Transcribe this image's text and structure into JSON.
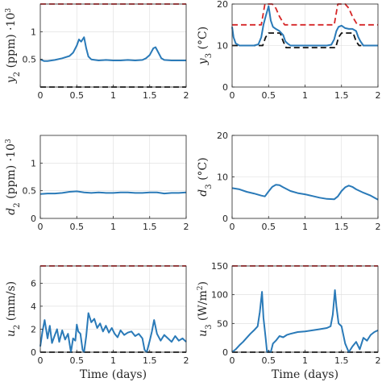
{
  "colors": {
    "series": "#2a7ab8",
    "upper_bound": "#d62728",
    "lower_bound": "#111111",
    "grid": "#dcdcdc"
  },
  "xlabel_text": "Time (days)",
  "chart_data": [
    {
      "id": "y2",
      "type": "line",
      "ylabel": "y2 (ppm) ·10³",
      "ylabel_parts": {
        "sym": "y",
        "sub": "2",
        "rest": " (ppm) ·10",
        "sup": "3"
      },
      "xlim": [
        0,
        2
      ],
      "ylim": [
        0,
        1.5
      ],
      "xticks": [
        0,
        0.5,
        1,
        1.5,
        2
      ],
      "xtick_labels": [
        "0",
        "0.5",
        "1",
        "1.5",
        "2"
      ],
      "yticks": [
        0.5,
        1
      ],
      "ytick_labels": [
        "0.5",
        "1"
      ],
      "xlabel": "",
      "grid": true,
      "series": [
        {
          "role": "measured",
          "style": "solid",
          "x": [
            0,
            0.05,
            0.1,
            0.2,
            0.3,
            0.4,
            0.45,
            0.5,
            0.53,
            0.56,
            0.6,
            0.63,
            0.66,
            0.7,
            0.8,
            0.9,
            1.0,
            1.1,
            1.2,
            1.3,
            1.4,
            1.45,
            1.5,
            1.55,
            1.58,
            1.62,
            1.66,
            1.7,
            1.8,
            1.9,
            2.0
          ],
          "y": [
            0.5,
            0.47,
            0.47,
            0.49,
            0.52,
            0.56,
            0.62,
            0.75,
            0.86,
            0.82,
            0.9,
            0.7,
            0.55,
            0.5,
            0.48,
            0.49,
            0.48,
            0.48,
            0.49,
            0.48,
            0.49,
            0.52,
            0.58,
            0.7,
            0.72,
            0.62,
            0.52,
            0.49,
            0.48,
            0.48,
            0.48
          ]
        },
        {
          "role": "upper",
          "style": "dashed",
          "x": [
            0,
            2
          ],
          "y": [
            1.5,
            1.5
          ]
        },
        {
          "role": "lower",
          "style": "dashed",
          "x": [
            0,
            2
          ],
          "y": [
            0.0,
            0.0
          ]
        }
      ]
    },
    {
      "id": "y3",
      "type": "line",
      "ylabel": "y3 (°C)",
      "ylabel_parts": {
        "sym": "y",
        "sub": "3",
        "rest": " (°C)",
        "sup": ""
      },
      "xlim": [
        0,
        2
      ],
      "ylim": [
        0,
        20
      ],
      "xticks": [
        0,
        0.5,
        1,
        1.5,
        2
      ],
      "xtick_labels": [
        "0",
        "0.5",
        "1",
        "1.5",
        "2"
      ],
      "yticks": [
        0,
        10,
        20
      ],
      "ytick_labels": [
        "0",
        "10",
        "20"
      ],
      "xlabel": "",
      "grid": true,
      "series": [
        {
          "role": "measured",
          "style": "solid",
          "x": [
            0,
            0.02,
            0.05,
            0.1,
            0.2,
            0.3,
            0.36,
            0.4,
            0.43,
            0.46,
            0.5,
            0.53,
            0.56,
            0.6,
            0.65,
            0.7,
            0.73,
            0.76,
            0.8,
            0.9,
            1.0,
            1.1,
            1.2,
            1.3,
            1.36,
            1.4,
            1.43,
            1.46,
            1.5,
            1.55,
            1.6,
            1.65,
            1.7,
            1.73,
            1.76,
            1.8,
            1.9,
            2.0
          ],
          "y": [
            14.5,
            12,
            10.5,
            10,
            10,
            10,
            10.3,
            12,
            15,
            17,
            19.5,
            16,
            14.5,
            14,
            13.5,
            12.5,
            11,
            10.5,
            10,
            10,
            10,
            10,
            10,
            10,
            10.2,
            11.5,
            13.5,
            14.5,
            14.8,
            14.2,
            14,
            14,
            13.5,
            12,
            11,
            10,
            10,
            10
          ]
        },
        {
          "role": "upper",
          "style": "dashed",
          "x": [
            0,
            0.4,
            0.42,
            0.45,
            0.5,
            0.55,
            0.6,
            0.65,
            0.7,
            0.72,
            0.75,
            1.4,
            1.42,
            1.45,
            1.5,
            1.55,
            1.6,
            1.65,
            1.7,
            1.72,
            1.75,
            2.0
          ],
          "y": [
            15,
            15,
            17,
            20,
            20,
            20,
            19,
            17,
            15.5,
            15,
            15,
            15,
            17,
            20,
            20,
            20,
            19,
            17,
            15.5,
            15,
            15,
            15
          ]
        },
        {
          "role": "lower",
          "style": "dashed",
          "x": [
            0,
            0.42,
            0.46,
            0.5,
            0.66,
            0.7,
            0.74,
            1.42,
            1.46,
            1.5,
            1.66,
            1.7,
            1.74,
            2.0
          ],
          "y": [
            10,
            10,
            12,
            13,
            13,
            11,
            9.5,
            9.5,
            12,
            13,
            13,
            11,
            10,
            10
          ]
        }
      ]
    },
    {
      "id": "d2",
      "type": "line",
      "ylabel": "d2 (ppm) ·10³",
      "ylabel_parts": {
        "sym": "d",
        "sub": "2",
        "rest": " (ppm) ·10",
        "sup": "3"
      },
      "xlim": [
        0,
        2
      ],
      "ylim": [
        0,
        1.5
      ],
      "xticks": [
        0,
        0.5,
        1,
        1.5,
        2
      ],
      "xtick_labels": [
        "0",
        "0.5",
        "1",
        "1.5",
        "2"
      ],
      "yticks": [
        0,
        0.5,
        1
      ],
      "ytick_labels": [
        "0",
        "0.5",
        "1"
      ],
      "xlabel": "",
      "grid": true,
      "series": [
        {
          "role": "measured",
          "style": "solid",
          "x": [
            0,
            0.1,
            0.2,
            0.3,
            0.4,
            0.5,
            0.6,
            0.7,
            0.8,
            0.9,
            1.0,
            1.1,
            1.2,
            1.3,
            1.4,
            1.5,
            1.6,
            1.7,
            1.8,
            1.9,
            2.0
          ],
          "y": [
            0.44,
            0.45,
            0.45,
            0.46,
            0.48,
            0.49,
            0.47,
            0.46,
            0.47,
            0.46,
            0.46,
            0.47,
            0.47,
            0.46,
            0.46,
            0.47,
            0.47,
            0.45,
            0.46,
            0.46,
            0.47
          ]
        }
      ]
    },
    {
      "id": "d3",
      "type": "line",
      "ylabel": "d3 (°C)",
      "ylabel_parts": {
        "sym": "d",
        "sub": "3",
        "rest": " (°C)",
        "sup": ""
      },
      "xlim": [
        0,
        2
      ],
      "ylim": [
        0,
        20
      ],
      "xticks": [
        0,
        0.5,
        1,
        1.5,
        2
      ],
      "xtick_labels": [
        "0",
        "0.5",
        "1",
        "1.5",
        "2"
      ],
      "yticks": [
        0,
        10,
        20
      ],
      "ytick_labels": [
        "0",
        "10",
        "20"
      ],
      "xlabel": "",
      "grid": true,
      "series": [
        {
          "role": "measured",
          "style": "solid",
          "x": [
            0,
            0.1,
            0.2,
            0.3,
            0.4,
            0.45,
            0.5,
            0.55,
            0.6,
            0.65,
            0.7,
            0.8,
            0.9,
            1.0,
            1.1,
            1.2,
            1.3,
            1.4,
            1.45,
            1.5,
            1.55,
            1.6,
            1.65,
            1.7,
            1.8,
            1.9,
            2.0
          ],
          "y": [
            7.3,
            7.0,
            6.4,
            6.0,
            5.5,
            5.3,
            6.5,
            7.6,
            8.1,
            8.0,
            7.5,
            6.6,
            6.1,
            5.8,
            5.4,
            5.0,
            4.7,
            4.6,
            5.3,
            6.6,
            7.5,
            7.9,
            7.6,
            7.0,
            6.2,
            5.5,
            4.5
          ]
        }
      ]
    },
    {
      "id": "u2",
      "type": "line",
      "ylabel": "u2 (mm/s)",
      "ylabel_parts": {
        "sym": "u",
        "sub": "2",
        "rest": " (mm/s)",
        "sup": ""
      },
      "xlim": [
        0,
        2
      ],
      "ylim": [
        0,
        7.5
      ],
      "xticks": [
        0,
        0.5,
        1,
        1.5,
        2
      ],
      "xtick_labels": [
        "0",
        "0.5",
        "1",
        "1.5",
        "2"
      ],
      "yticks": [
        0,
        2,
        4,
        6
      ],
      "ytick_labels": [
        "0",
        "2",
        "4",
        "6"
      ],
      "xlabel": "Time (days)",
      "grid": true,
      "series": [
        {
          "role": "measured",
          "style": "solid",
          "x": [
            0,
            0.03,
            0.06,
            0.1,
            0.13,
            0.16,
            0.2,
            0.23,
            0.26,
            0.3,
            0.34,
            0.38,
            0.42,
            0.45,
            0.48,
            0.5,
            0.52,
            0.55,
            0.58,
            0.6,
            0.63,
            0.66,
            0.7,
            0.74,
            0.78,
            0.82,
            0.86,
            0.9,
            0.94,
            0.98,
            1.02,
            1.06,
            1.1,
            1.15,
            1.2,
            1.25,
            1.3,
            1.35,
            1.4,
            1.43,
            1.46,
            1.5,
            1.53,
            1.56,
            1.6,
            1.65,
            1.7,
            1.75,
            1.8,
            1.85,
            1.9,
            1.95,
            2.0
          ],
          "y": [
            0.5,
            1.8,
            2.8,
            1.2,
            2.3,
            0.8,
            1.5,
            2.0,
            0.9,
            1.9,
            1.1,
            1.6,
            0.0,
            1.2,
            1.0,
            2.4,
            1.8,
            1.6,
            0.2,
            0.0,
            1.4,
            3.4,
            2.6,
            2.9,
            2.1,
            2.5,
            1.8,
            2.3,
            1.7,
            2.1,
            1.6,
            1.3,
            1.9,
            1.5,
            1.7,
            1.8,
            1.4,
            1.6,
            1.2,
            0.2,
            0.0,
            1.0,
            1.8,
            2.8,
            1.6,
            1.0,
            1.5,
            1.2,
            0.9,
            1.4,
            1.0,
            1.2,
            0.9
          ]
        },
        {
          "role": "upper",
          "style": "dashed",
          "x": [
            0,
            2
          ],
          "y": [
            7.5,
            7.5
          ]
        },
        {
          "role": "lower",
          "style": "dashed",
          "x": [
            0,
            2
          ],
          "y": [
            0.0,
            0.0
          ]
        }
      ]
    },
    {
      "id": "u3",
      "type": "line",
      "ylabel": "u3 (W/m²)",
      "ylabel_parts": {
        "sym": "u",
        "sub": "3",
        "rest": " (W/m",
        "sup": "2",
        "close": ")"
      },
      "xlim": [
        0,
        2
      ],
      "ylim": [
        0,
        150
      ],
      "xticks": [
        0,
        0.5,
        1,
        1.5,
        2
      ],
      "xtick_labels": [
        "0",
        "0.5",
        "1",
        "1.5",
        "2"
      ],
      "yticks": [
        0,
        50,
        100,
        150
      ],
      "ytick_labels": [
        "0",
        "50",
        "100",
        "150"
      ],
      "xlabel": "Time (days)",
      "grid": true,
      "series": [
        {
          "role": "measured",
          "style": "solid",
          "x": [
            0,
            0.05,
            0.1,
            0.15,
            0.2,
            0.25,
            0.3,
            0.35,
            0.38,
            0.41,
            0.43,
            0.46,
            0.48,
            0.5,
            0.53,
            0.56,
            0.6,
            0.65,
            0.7,
            0.75,
            0.8,
            0.9,
            1.0,
            1.1,
            1.2,
            1.3,
            1.35,
            1.38,
            1.41,
            1.43,
            1.46,
            1.5,
            1.55,
            1.6,
            1.65,
            1.7,
            1.75,
            1.8,
            1.85,
            1.9,
            1.95,
            2.0
          ],
          "y": [
            0,
            5,
            12,
            18,
            25,
            32,
            38,
            45,
            70,
            105,
            60,
            25,
            0,
            2,
            0,
            15,
            20,
            28,
            26,
            30,
            32,
            35,
            36,
            38,
            40,
            42,
            45,
            65,
            108,
            80,
            50,
            45,
            15,
            0,
            10,
            18,
            5,
            25,
            20,
            30,
            35,
            38
          ]
        },
        {
          "role": "upper",
          "style": "dashed",
          "x": [
            0,
            2
          ],
          "y": [
            150,
            150
          ]
        },
        {
          "role": "lower",
          "style": "dashed",
          "x": [
            0,
            2
          ],
          "y": [
            0,
            0
          ]
        }
      ]
    }
  ]
}
